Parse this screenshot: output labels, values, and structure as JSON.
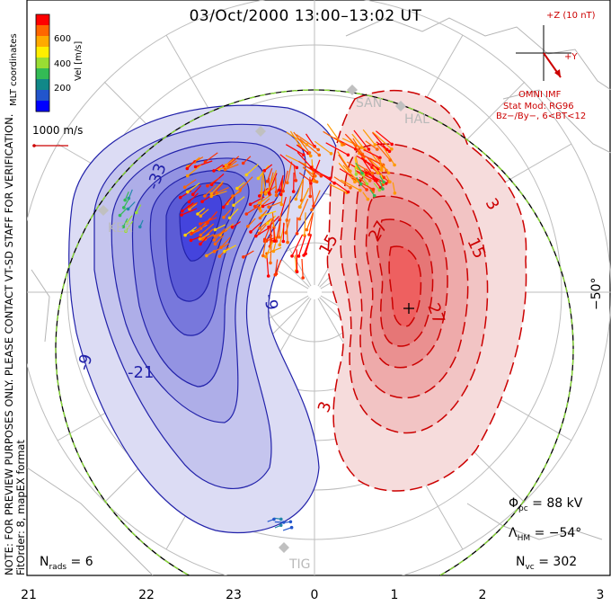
{
  "header": {
    "title": "03/Oct/2000 13:00–13:02 UT"
  },
  "side_note": {
    "line1": "NOTE: FOR PREVIEW PURPOSES ONLY. PLEASE CONTACT VT-SD STAFF FOR VERIFICATION.",
    "line2": "FitOrder: 8, mapEX format"
  },
  "colorbar": {
    "title": "Vel [m/s]",
    "coords": "MLT coordinates",
    "ticks": [
      "600",
      "400",
      "200"
    ],
    "colors": [
      "#ff0000",
      "#ff6600",
      "#ffaa00",
      "#ffee00",
      "#99dd33",
      "#33bb55",
      "#118888",
      "#2255cc",
      "#0000ff"
    ]
  },
  "scale": {
    "label": "1000 m/s"
  },
  "imf": {
    "z_label": "+Z (10 nT)",
    "y_label": "+Y",
    "source": "OMNI IMF",
    "model": "Stat Mod: RG96",
    "condition": "Bz−/By−, 6<BT<12"
  },
  "stats": {
    "phi_pc": "88 kV",
    "lambda_hm": "−54°",
    "n_vc": "302",
    "n_rads": "6"
  },
  "stations": [
    "SAN",
    "HAL",
    "KER",
    "TIG"
  ],
  "axis": {
    "mlt_ticks": [
      "21",
      "22",
      "23",
      "0",
      "1",
      "2",
      "3"
    ],
    "lat_label": "−50°"
  },
  "contours": {
    "negative_labels": [
      "-33",
      "-21",
      "-9",
      "-9"
    ],
    "positive_labels": [
      "27",
      "27",
      "15",
      "15",
      "3",
      "3"
    ],
    "negative_color": "#2222aa",
    "positive_color": "#cc0000"
  }
}
